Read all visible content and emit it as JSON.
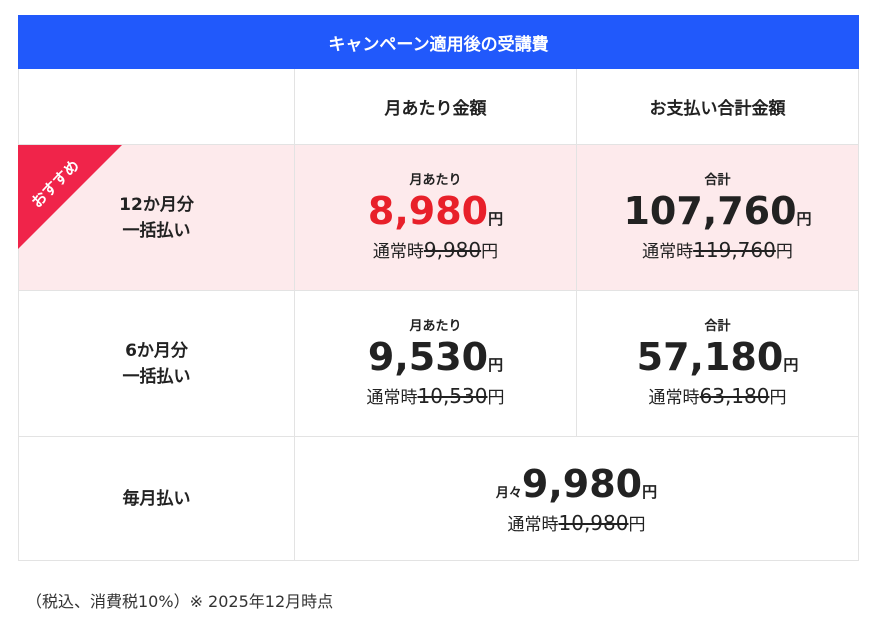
{
  "title": "キャンペーン適用後の受講費",
  "table": {
    "headers": [
      "月あたり金額",
      "お支払い合計金額"
    ],
    "rows": [
      {
        "plan": [
          "12か月分",
          "一括払い"
        ],
        "badge": "おすすめ",
        "monthly": {
          "label": "月あたり",
          "price": "8,980",
          "unit": "円",
          "regular": {
            "label": "通常時",
            "price": "9,980",
            "unit": "円"
          }
        },
        "total": {
          "label": "合計",
          "price": "107,760",
          "unit": "円",
          "regular": {
            "label": "通常時",
            "price": "119,760",
            "unit": "円"
          }
        }
      },
      {
        "plan": [
          "6か月分",
          "一括払い"
        ],
        "monthly": {
          "label": "月あたり",
          "price": "9,530",
          "unit": "円",
          "regular": {
            "label": "通常時",
            "price": "10,530",
            "unit": "円"
          }
        },
        "total": {
          "label": "合計",
          "price": "57,180",
          "unit": "円",
          "regular": {
            "label": "通常時",
            "price": "63,180",
            "unit": "円"
          }
        }
      },
      {
        "plan": [
          "毎月払い"
        ],
        "monthly": {
          "label": "月々",
          "price": "9,980",
          "unit": "円",
          "regular": {
            "label": "通常時",
            "price": "10,980",
            "unit": "円"
          }
        }
      }
    ]
  },
  "footnote": "（税込、消費税10%）※ 2025年12月時点"
}
